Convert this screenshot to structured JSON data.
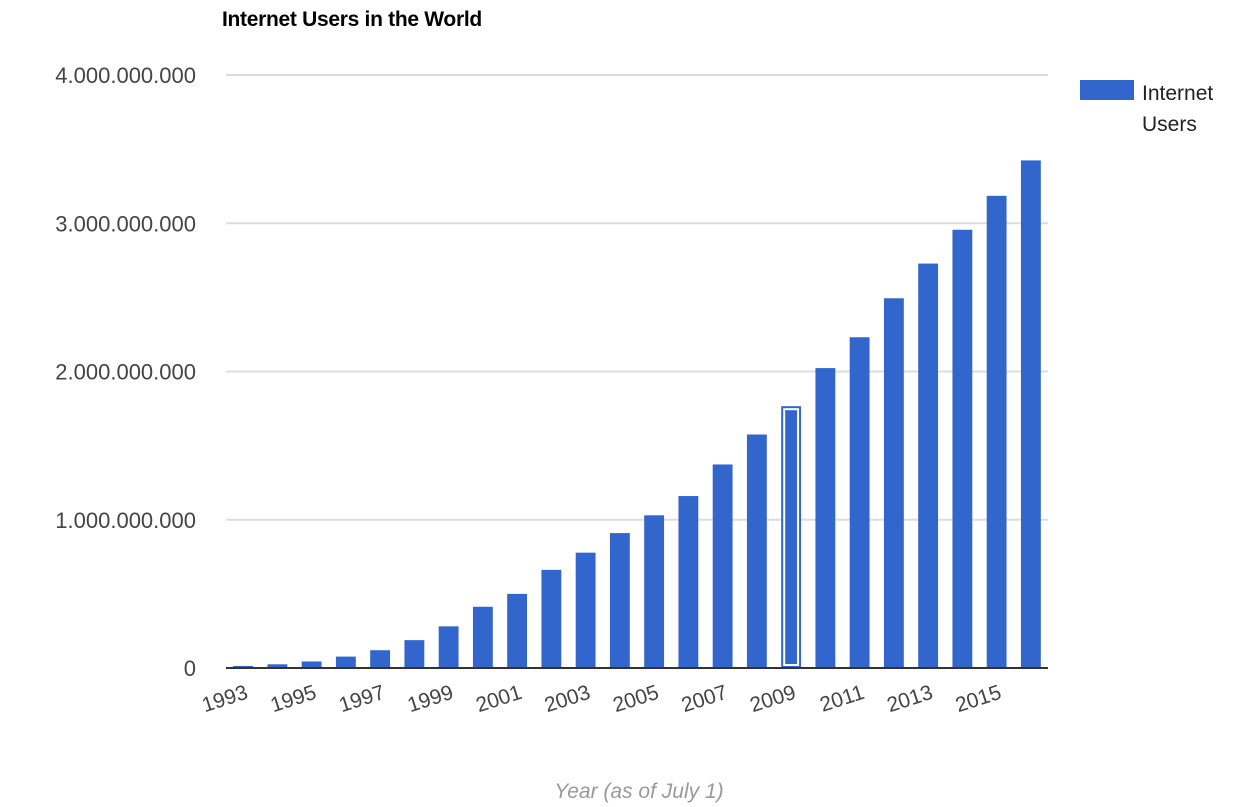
{
  "chart_data": {
    "type": "bar",
    "title": "Internet Users in the World",
    "xlabel": "Year (as of July 1)",
    "ylabel": "",
    "ylim": [
      0,
      4000000000
    ],
    "yticks": [
      0,
      1000000000,
      2000000000,
      3000000000,
      4000000000
    ],
    "ytick_labels": [
      "0",
      "1.000.000.000",
      "2.000.000.000",
      "3.000.000.000",
      "4.000.000.000"
    ],
    "categories": [
      "1993",
      "1994",
      "1995",
      "1996",
      "1997",
      "1998",
      "1999",
      "2000",
      "2001",
      "2002",
      "2003",
      "2004",
      "2005",
      "2006",
      "2007",
      "2008",
      "2009",
      "2010",
      "2011",
      "2012",
      "2013",
      "2014",
      "2015",
      "2016"
    ],
    "xtick_labels": [
      "1993",
      "1995",
      "1997",
      "1999",
      "2001",
      "2003",
      "2005",
      "2007",
      "2009",
      "2011",
      "2013",
      "2015"
    ],
    "series": [
      {
        "name": "Internet Users",
        "color": "#3366cc",
        "values": [
          14000000,
          25000000,
          44000000,
          77000000,
          120000000,
          188000000,
          281000000,
          413000000,
          500000000,
          662000000,
          778000000,
          910000000,
          1030000000,
          1160000000,
          1373000000,
          1575000000,
          1766000000,
          2023000000,
          2231000000,
          2494000000,
          2728000000,
          2956000000,
          3185000000,
          3424000000
        ]
      }
    ],
    "highlighted_category": "2009",
    "grid": true,
    "legend_position": "right"
  }
}
